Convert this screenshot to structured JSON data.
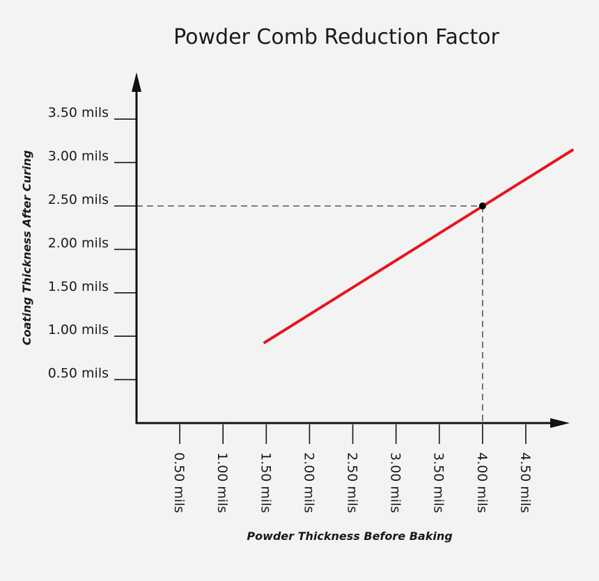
{
  "chart_data": {
    "type": "line",
    "title": "Powder Comb Reduction Factor",
    "xlabel": "Powder Thickness Before Baking",
    "ylabel": "Coating Thickness After Curing",
    "x_ticks": [
      {
        "value": 0.5,
        "label": "0.50 mils"
      },
      {
        "value": 1.0,
        "label": "1.00 mils"
      },
      {
        "value": 1.5,
        "label": "1.50 mils"
      },
      {
        "value": 2.0,
        "label": "2.00 mils"
      },
      {
        "value": 2.5,
        "label": "2.50 mils"
      },
      {
        "value": 3.0,
        "label": "3.00 mils"
      },
      {
        "value": 3.5,
        "label": "3.50 mils"
      },
      {
        "value": 4.0,
        "label": "4.00 mils"
      },
      {
        "value": 4.5,
        "label": "4.50 mils"
      }
    ],
    "y_ticks": [
      {
        "value": 0.5,
        "label": "0.50 mils"
      },
      {
        "value": 1.0,
        "label": "1.00 mils"
      },
      {
        "value": 1.5,
        "label": "1.50 mils"
      },
      {
        "value": 2.0,
        "label": "2.00 mils"
      },
      {
        "value": 2.5,
        "label": "2.50 mils"
      },
      {
        "value": 3.0,
        "label": "3.00 mils"
      },
      {
        "value": 3.5,
        "label": "3.50 mils"
      }
    ],
    "xlim": [
      0,
      5
    ],
    "ylim": [
      0,
      4
    ],
    "series": [
      {
        "x": [
          1.47,
          5.05
        ],
        "y": [
          0.92,
          3.15
        ],
        "color": "#e8141c"
      }
    ],
    "highlight_point": {
      "x": 4.0,
      "y": 2.5,
      "guides": "dashed"
    },
    "grid": false,
    "axis_color": "#111111"
  }
}
